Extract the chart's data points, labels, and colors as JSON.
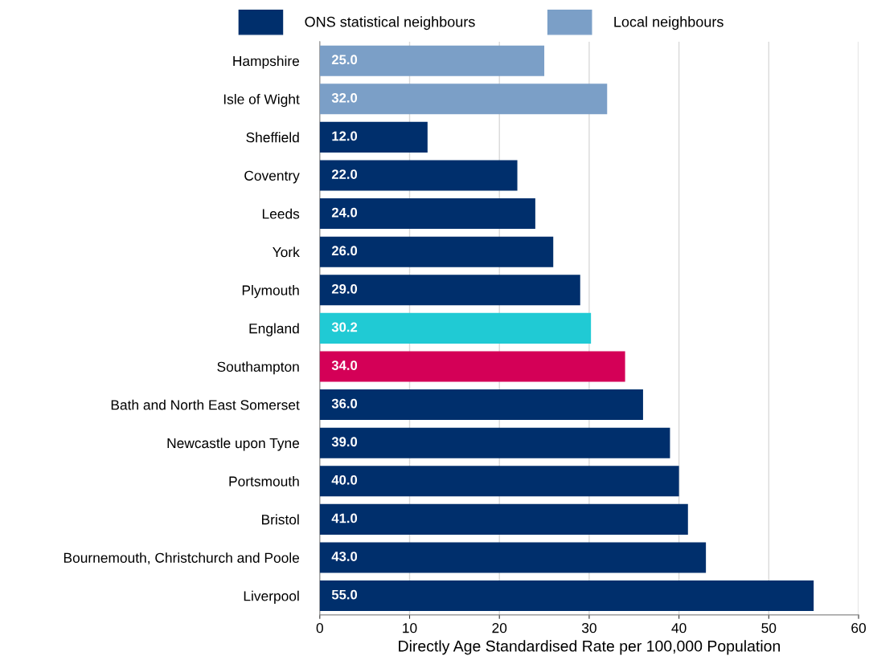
{
  "chart_data": {
    "type": "bar",
    "orientation": "horizontal",
    "xlabel": "Directly Age Standardised Rate per 100,000 Population",
    "categories": [
      "Hampshire",
      "Isle of Wight",
      "Sheffield",
      "Coventry",
      "Leeds",
      "York",
      "Plymouth",
      "England",
      "Southampton",
      "Bath and North East Somerset",
      "Newcastle upon Tyne",
      "Portsmouth",
      "Bristol",
      "Bournemouth, Christchurch and Poole",
      "Liverpool"
    ],
    "series": [
      {
        "name": "ONS statistical neighbours",
        "color": "#002f6c",
        "values": [
          null,
          null,
          12,
          22,
          24,
          26,
          29,
          null,
          null,
          36,
          39,
          40,
          41,
          43,
          55
        ],
        "value_labels": [
          null,
          null,
          "12.0",
          "22.0",
          "24.0",
          "26.0",
          "29.0",
          null,
          null,
          "36.0",
          "39.0",
          "40.0",
          "41.0",
          "43.0",
          "55.0"
        ]
      },
      {
        "name": "Local neighbours",
        "color": "#7b9fc7",
        "values": [
          25,
          32,
          null,
          null,
          null,
          null,
          null,
          null,
          null,
          null,
          null,
          null,
          null,
          null,
          null
        ],
        "value_labels": [
          "25.0",
          "32.0",
          null,
          null,
          null,
          null,
          null,
          null,
          null,
          null,
          null,
          null,
          null,
          null,
          null
        ]
      },
      {
        "color": "#20cad4",
        "values": [
          null,
          null,
          null,
          null,
          null,
          null,
          null,
          30.2,
          null,
          null,
          null,
          null,
          null,
          null,
          null
        ],
        "value_labels": [
          null,
          null,
          null,
          null,
          null,
          null,
          null,
          "30.2",
          null,
          null,
          null,
          null,
          null,
          null,
          null
        ]
      },
      {
        "color": "#d40057",
        "values": [
          null,
          null,
          null,
          null,
          null,
          null,
          null,
          null,
          34,
          null,
          null,
          null,
          null,
          null,
          null
        ],
        "value_labels": [
          null,
          null,
          null,
          null,
          null,
          null,
          null,
          null,
          "34.0",
          null,
          null,
          null,
          null,
          null,
          null
        ]
      }
    ],
    "xlim": [
      0,
      60
    ],
    "xticks": [
      0,
      10,
      20,
      30,
      40,
      50,
      60
    ],
    "grid": "x",
    "legend": "top"
  }
}
